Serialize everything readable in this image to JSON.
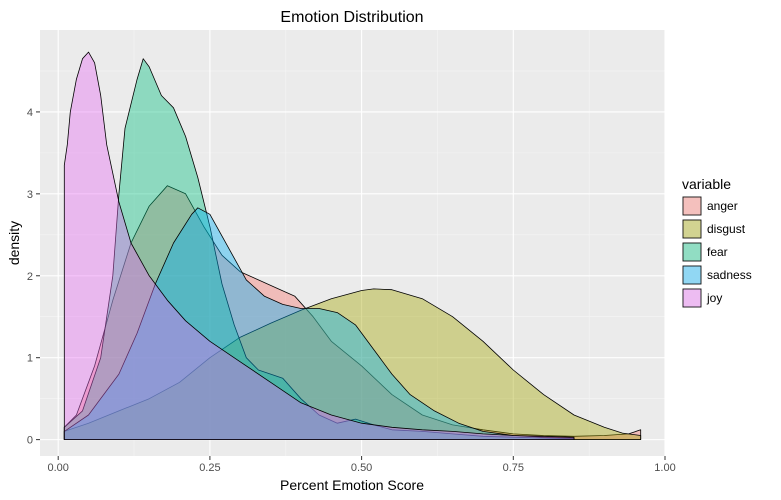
{
  "chart_data": {
    "type": "area",
    "title": "Emotion Distribution",
    "xlabel": "Percent Emotion Score",
    "ylabel": "density",
    "xlim": [
      -0.03,
      1.0
    ],
    "ylim": [
      -0.2,
      5.0
    ],
    "x_ticks": [
      0.0,
      0.25,
      0.5,
      0.75,
      1.0
    ],
    "x_tick_labels": [
      "0.00",
      "0.25",
      "0.50",
      "0.75",
      "1.00"
    ],
    "y_ticks": [
      0,
      1,
      2,
      3,
      4
    ],
    "y_tick_labels": [
      "0",
      "1",
      "2",
      "3",
      "4"
    ],
    "grid": true,
    "legend": {
      "title": "variable",
      "position": "right"
    },
    "series": [
      {
        "name": "anger",
        "color": "#F8766D",
        "points": [
          [
            0.01,
            0.15
          ],
          [
            0.03,
            0.3
          ],
          [
            0.06,
            0.9
          ],
          [
            0.09,
            1.7
          ],
          [
            0.12,
            2.4
          ],
          [
            0.15,
            2.85
          ],
          [
            0.18,
            3.1
          ],
          [
            0.21,
            3.0
          ],
          [
            0.24,
            2.6
          ],
          [
            0.27,
            2.25
          ],
          [
            0.3,
            2.05
          ],
          [
            0.33,
            1.95
          ],
          [
            0.36,
            1.85
          ],
          [
            0.39,
            1.75
          ],
          [
            0.42,
            1.5
          ],
          [
            0.45,
            1.2
          ],
          [
            0.5,
            0.9
          ],
          [
            0.55,
            0.55
          ],
          [
            0.6,
            0.3
          ],
          [
            0.65,
            0.18
          ],
          [
            0.7,
            0.12
          ],
          [
            0.75,
            0.07
          ],
          [
            0.8,
            0.05
          ],
          [
            0.85,
            0.04
          ],
          [
            0.9,
            0.05
          ],
          [
            0.94,
            0.07
          ],
          [
            0.96,
            0.12
          ],
          [
            0.96,
            0.0
          ]
        ]
      },
      {
        "name": "disgust",
        "color": "#A3A500",
        "points": [
          [
            0.01,
            0.1
          ],
          [
            0.05,
            0.2
          ],
          [
            0.1,
            0.35
          ],
          [
            0.15,
            0.5
          ],
          [
            0.2,
            0.7
          ],
          [
            0.25,
            1.0
          ],
          [
            0.3,
            1.25
          ],
          [
            0.35,
            1.42
          ],
          [
            0.4,
            1.58
          ],
          [
            0.45,
            1.72
          ],
          [
            0.5,
            1.82
          ],
          [
            0.52,
            1.84
          ],
          [
            0.55,
            1.83
          ],
          [
            0.6,
            1.72
          ],
          [
            0.65,
            1.5
          ],
          [
            0.7,
            1.2
          ],
          [
            0.75,
            0.85
          ],
          [
            0.8,
            0.55
          ],
          [
            0.85,
            0.3
          ],
          [
            0.9,
            0.15
          ],
          [
            0.93,
            0.08
          ],
          [
            0.96,
            0.05
          ],
          [
            0.96,
            0.0
          ]
        ]
      },
      {
        "name": "fear",
        "color": "#00BF7D",
        "points": [
          [
            0.01,
            0.15
          ],
          [
            0.04,
            0.35
          ],
          [
            0.07,
            1.0
          ],
          [
            0.09,
            2.0
          ],
          [
            0.1,
            3.0
          ],
          [
            0.11,
            3.8
          ],
          [
            0.13,
            4.4
          ],
          [
            0.14,
            4.65
          ],
          [
            0.15,
            4.55
          ],
          [
            0.17,
            4.2
          ],
          [
            0.19,
            4.05
          ],
          [
            0.21,
            3.7
          ],
          [
            0.23,
            3.2
          ],
          [
            0.25,
            2.6
          ],
          [
            0.27,
            1.9
          ],
          [
            0.29,
            1.4
          ],
          [
            0.31,
            1.0
          ],
          [
            0.33,
            0.85
          ],
          [
            0.35,
            0.8
          ],
          [
            0.37,
            0.75
          ],
          [
            0.4,
            0.5
          ],
          [
            0.43,
            0.3
          ],
          [
            0.46,
            0.2
          ],
          [
            0.49,
            0.25
          ],
          [
            0.52,
            0.18
          ],
          [
            0.55,
            0.12
          ],
          [
            0.6,
            0.1
          ],
          [
            0.65,
            0.07
          ],
          [
            0.7,
            0.04
          ],
          [
            0.75,
            0.03
          ],
          [
            0.8,
            0.02
          ],
          [
            0.85,
            0.01
          ],
          [
            0.85,
            0.0
          ]
        ]
      },
      {
        "name": "sadness",
        "color": "#00B0F6",
        "points": [
          [
            0.01,
            0.1
          ],
          [
            0.05,
            0.3
          ],
          [
            0.1,
            0.8
          ],
          [
            0.13,
            1.3
          ],
          [
            0.16,
            1.9
          ],
          [
            0.19,
            2.4
          ],
          [
            0.22,
            2.75
          ],
          [
            0.23,
            2.83
          ],
          [
            0.25,
            2.75
          ],
          [
            0.28,
            2.35
          ],
          [
            0.31,
            1.95
          ],
          [
            0.34,
            1.75
          ],
          [
            0.37,
            1.65
          ],
          [
            0.4,
            1.6
          ],
          [
            0.43,
            1.6
          ],
          [
            0.46,
            1.55
          ],
          [
            0.49,
            1.4
          ],
          [
            0.52,
            1.1
          ],
          [
            0.55,
            0.8
          ],
          [
            0.58,
            0.55
          ],
          [
            0.62,
            0.35
          ],
          [
            0.66,
            0.2
          ],
          [
            0.7,
            0.1
          ],
          [
            0.75,
            0.05
          ],
          [
            0.8,
            0.03
          ],
          [
            0.85,
            0.02
          ],
          [
            0.85,
            0.0
          ]
        ]
      },
      {
        "name": "joy",
        "color": "#E76BF3",
        "points": [
          [
            0.01,
            3.35
          ],
          [
            0.015,
            3.6
          ],
          [
            0.02,
            4.0
          ],
          [
            0.03,
            4.4
          ],
          [
            0.04,
            4.65
          ],
          [
            0.05,
            4.73
          ],
          [
            0.06,
            4.6
          ],
          [
            0.07,
            4.2
          ],
          [
            0.08,
            3.6
          ],
          [
            0.1,
            2.9
          ],
          [
            0.12,
            2.4
          ],
          [
            0.15,
            2.0
          ],
          [
            0.18,
            1.7
          ],
          [
            0.21,
            1.45
          ],
          [
            0.25,
            1.2
          ],
          [
            0.3,
            0.95
          ],
          [
            0.35,
            0.7
          ],
          [
            0.4,
            0.45
          ],
          [
            0.45,
            0.3
          ],
          [
            0.5,
            0.2
          ],
          [
            0.55,
            0.15
          ],
          [
            0.6,
            0.12
          ],
          [
            0.65,
            0.1
          ],
          [
            0.7,
            0.07
          ],
          [
            0.75,
            0.05
          ],
          [
            0.8,
            0.04
          ],
          [
            0.85,
            0.03
          ],
          [
            0.85,
            0.0
          ]
        ]
      }
    ]
  }
}
